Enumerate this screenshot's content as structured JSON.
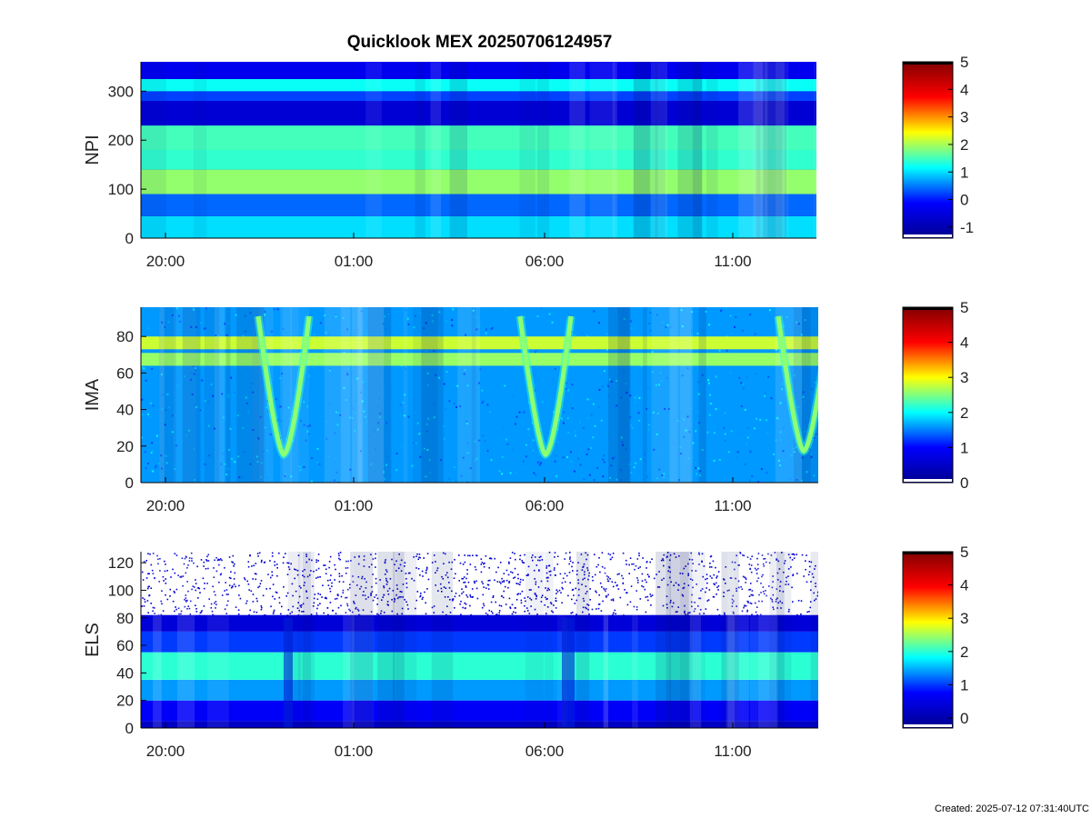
{
  "title": "Quicklook MEX 20250706124957",
  "footer": {
    "created": "Created: 2025-07-12 07:31:40UTC"
  },
  "colormap": {
    "name": "jet",
    "stops": [
      "#00008f",
      "#0000ff",
      "#00ffff",
      "#ffff00",
      "#ff0000",
      "#800000"
    ],
    "top_color": "#000000",
    "bottom_color": "#ffffff"
  },
  "chart_data": [
    {
      "type": "heatmap",
      "ylabel": "NPI",
      "ylim": [
        0,
        360
      ],
      "yticks": [
        0,
        100,
        200,
        300
      ],
      "xticks": [
        "20:00",
        "01:00",
        "06:00",
        "11:00"
      ],
      "colorbar": {
        "ticks": [
          -1,
          0,
          1,
          2,
          3,
          4,
          5
        ],
        "range": [
          -1.4,
          5
        ]
      },
      "bands": [
        {
          "from": 0,
          "to": 45,
          "level": 1.0
        },
        {
          "from": 45,
          "to": 90,
          "level": 0.4
        },
        {
          "from": 90,
          "to": 140,
          "level": 1.9
        },
        {
          "from": 140,
          "to": 180,
          "level": 1.4
        },
        {
          "from": 180,
          "to": 230,
          "level": 1.5
        },
        {
          "from": 230,
          "to": 280,
          "level": -0.6
        },
        {
          "from": 280,
          "to": 300,
          "level": 0.2
        },
        {
          "from": 300,
          "to": 325,
          "level": 1.2
        },
        {
          "from": 325,
          "to": 360,
          "level": -0.3
        }
      ]
    },
    {
      "type": "heatmap",
      "ylabel": "IMA",
      "ylim": [
        0,
        96
      ],
      "yticks": [
        0,
        20,
        40,
        60,
        80
      ],
      "xticks": [
        "20:00",
        "01:00",
        "06:00",
        "11:00"
      ],
      "colorbar": {
        "ticks": [
          0,
          1,
          2,
          3,
          4,
          5
        ],
        "range": [
          0,
          5
        ]
      },
      "background_level": 1.6,
      "bands": [
        {
          "from": 64,
          "to": 71,
          "level": 2.6
        },
        {
          "from": 73,
          "to": 80,
          "level": 2.8
        }
      ]
    },
    {
      "type": "heatmap",
      "ylabel": "ELS",
      "ylim": [
        0,
        128
      ],
      "yticks": [
        0,
        20,
        40,
        60,
        80,
        100,
        120
      ],
      "xticks": [
        "20:00",
        "01:00",
        "06:00",
        "11:00"
      ],
      "colorbar": {
        "ticks": [
          0,
          1,
          2,
          3,
          4,
          5
        ],
        "range": [
          -0.3,
          5
        ]
      },
      "bands": [
        {
          "from": 0,
          "to": 5,
          "level": 0.2
        },
        {
          "from": 5,
          "to": 20,
          "level": 0.7
        },
        {
          "from": 20,
          "to": 35,
          "level": 1.4
        },
        {
          "from": 35,
          "to": 55,
          "level": 2.0
        },
        {
          "from": 55,
          "to": 70,
          "level": 1.0
        },
        {
          "from": 70,
          "to": 82,
          "level": 0.4
        }
      ]
    }
  ]
}
